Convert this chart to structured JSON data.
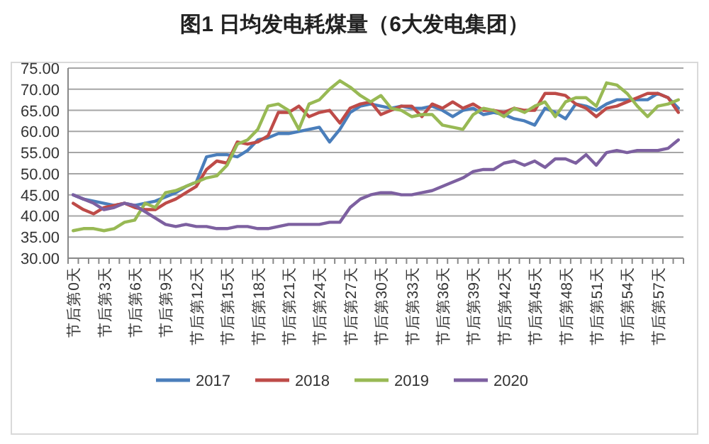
{
  "chart_data": {
    "type": "line",
    "title": "图1  日均发电耗煤量（6大发电集团）",
    "categories": [
      "节后第0天",
      null,
      null,
      "节后第3天",
      null,
      null,
      "节后第6天",
      null,
      null,
      "节后第9天",
      null,
      null,
      "节后第12天",
      null,
      null,
      "节后第15天",
      null,
      null,
      "节后第18天",
      null,
      null,
      "节后第21天",
      null,
      null,
      "节后第24天",
      null,
      null,
      "节后第27天",
      null,
      null,
      "节后第30天",
      null,
      null,
      "节后第33天",
      null,
      null,
      "节后第36天",
      null,
      null,
      "节后第39天",
      null,
      null,
      "节后第42天",
      null,
      null,
      "节后第45天",
      null,
      null,
      "节后第48天",
      null,
      null,
      "节后第51天",
      null,
      null,
      "节后第54天",
      null,
      null,
      "节后第57天",
      null,
      null
    ],
    "series": [
      {
        "name": "2017",
        "color": "#4a7ebb",
        "values": [
          45,
          44,
          43.5,
          43,
          42.5,
          43,
          42.5,
          43,
          43.5,
          44.5,
          45.5,
          47,
          48,
          54,
          54.5,
          54.5,
          54,
          55.5,
          58,
          58.5,
          59.5,
          59.5,
          60,
          60.5,
          61,
          57.5,
          60.5,
          64.5,
          66,
          66.5,
          66,
          65.5,
          66,
          65.5,
          65.5,
          66,
          65,
          63.5,
          65,
          65.5,
          64,
          64.5,
          64,
          63,
          62.5,
          61.5,
          65.5,
          64.5,
          63,
          66.5,
          66,
          65,
          66.5,
          67.5,
          67.5,
          67.5,
          67.5,
          69,
          68,
          65.5
        ]
      },
      {
        "name": "2018",
        "color": "#be4b48",
        "values": [
          43,
          41.5,
          40.5,
          42,
          42.5,
          43,
          42,
          41.5,
          41.5,
          43,
          44,
          45.5,
          47,
          51,
          53,
          52.5,
          57.5,
          57,
          57.5,
          59,
          64.5,
          64.5,
          66,
          63.5,
          64.5,
          65,
          62,
          65.5,
          66.5,
          67,
          64,
          65,
          66,
          66,
          63.5,
          66.5,
          65.5,
          67,
          65.5,
          66.5,
          65,
          65,
          64.5,
          65.5,
          65,
          65,
          69,
          69,
          68.5,
          66.5,
          65.5,
          63.5,
          65.5,
          66,
          67,
          68,
          69,
          69,
          68,
          64.5
        ]
      },
      {
        "name": "2019",
        "color": "#98b954",
        "values": [
          36.5,
          37,
          37,
          36.5,
          37,
          38.5,
          39,
          43,
          42,
          45.5,
          46,
          47,
          48,
          49,
          49.5,
          52,
          57,
          58,
          60.5,
          66,
          66.5,
          65,
          60.5,
          66.5,
          67.5,
          70,
          72,
          70.5,
          68.5,
          67,
          68.5,
          65.5,
          65,
          63.5,
          64,
          64,
          61.5,
          61,
          60.5,
          64,
          65.5,
          65,
          63.5,
          65.5,
          64.5,
          66,
          67,
          63.5,
          67,
          68,
          68,
          66,
          71.5,
          71,
          69,
          66,
          63.5,
          66,
          66.5,
          67.5
        ]
      },
      {
        "name": "2020",
        "color": "#7d60a0",
        "values": [
          45,
          44,
          43,
          41.5,
          42,
          43,
          42.5,
          41,
          39.5,
          38,
          37.5,
          38,
          37.5,
          37.5,
          37,
          37,
          37.5,
          37.5,
          37,
          37,
          37.5,
          38,
          38,
          38,
          38,
          38.5,
          38.5,
          42,
          44,
          45,
          45.5,
          45.5,
          45,
          45,
          45.5,
          46,
          47,
          48,
          49,
          50.5,
          51,
          51,
          52.5,
          53,
          52,
          53,
          51.5,
          53.5,
          53.5,
          52.5,
          54.5,
          52,
          55,
          55.5,
          55,
          55.5,
          55.5,
          55.5,
          56,
          58
        ]
      }
    ],
    "ylim": [
      30,
      75
    ],
    "yticks": [
      {
        "value": 30,
        "label": "30.00"
      },
      {
        "value": 35,
        "label": "35.00"
      },
      {
        "value": 40,
        "label": "40.00"
      },
      {
        "value": 45,
        "label": "45.00"
      },
      {
        "value": 50,
        "label": "50.00"
      },
      {
        "value": 55,
        "label": "55.00"
      },
      {
        "value": 60,
        "label": "60.00"
      },
      {
        "value": 65,
        "label": "65.00"
      },
      {
        "value": 70,
        "label": "70.00"
      },
      {
        "value": 75,
        "label": "75.00"
      }
    ],
    "grid": "y",
    "legend": "bottom",
    "marker": "none",
    "line_style": "solid"
  }
}
